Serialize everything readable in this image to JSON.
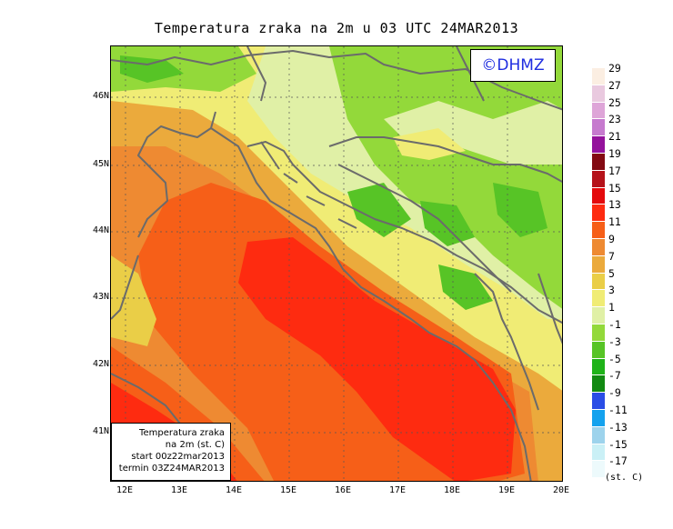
{
  "title": "Temperatura zraka na 2m u 03 UTC 24MAR2013",
  "logo": "©DHMZ",
  "info_box": {
    "line1": "Temperatura zraka",
    "line2": "na 2m (st. C)",
    "line3": "start 00z22mar2013",
    "line4": "termin 03Z24MAR2013"
  },
  "y_labels": [
    "46N",
    "45N",
    "44N",
    "43N",
    "42N",
    "41N"
  ],
  "x_labels": [
    "12E",
    "13E",
    "14E",
    "15E",
    "16E",
    "17E",
    "18E",
    "19E",
    "20E"
  ],
  "legend_unit": "(st. C)",
  "legend": [
    {
      "label": "29",
      "color": "#fbeee2"
    },
    {
      "label": "27",
      "color": "#e9c9df"
    },
    {
      "label": "25",
      "color": "#dea5d8"
    },
    {
      "label": "23",
      "color": "#c67ace"
    },
    {
      "label": "21",
      "color": "#94129c"
    },
    {
      "label": "19",
      "color": "#830a12"
    },
    {
      "label": "17",
      "color": "#b5121a"
    },
    {
      "label": "15",
      "color": "#e40a0c"
    },
    {
      "label": "13",
      "color": "#fe2b10"
    },
    {
      "label": "11",
      "color": "#f65f18"
    },
    {
      "label": "9",
      "color": "#ee8a32"
    },
    {
      "label": "7",
      "color": "#ebaa3c"
    },
    {
      "label": "5",
      "color": "#eace47"
    },
    {
      "label": "3",
      "color": "#f0ec75"
    },
    {
      "label": "1",
      "color": "#e0f0a6"
    },
    {
      "label": "-1",
      "color": "#93d93a"
    },
    {
      "label": "-3",
      "color": "#57c426"
    },
    {
      "label": "-5",
      "color": "#1fb319"
    },
    {
      "label": "-7",
      "color": "#128a12"
    },
    {
      "label": "-9",
      "color": "#2a4de6"
    },
    {
      "label": "-11",
      "color": "#14a2ee"
    },
    {
      "label": "-13",
      "color": "#9dd3ec"
    },
    {
      "label": "-15",
      "color": "#caf0f6"
    },
    {
      "label": "-17",
      "color": "#edfafc"
    }
  ]
}
